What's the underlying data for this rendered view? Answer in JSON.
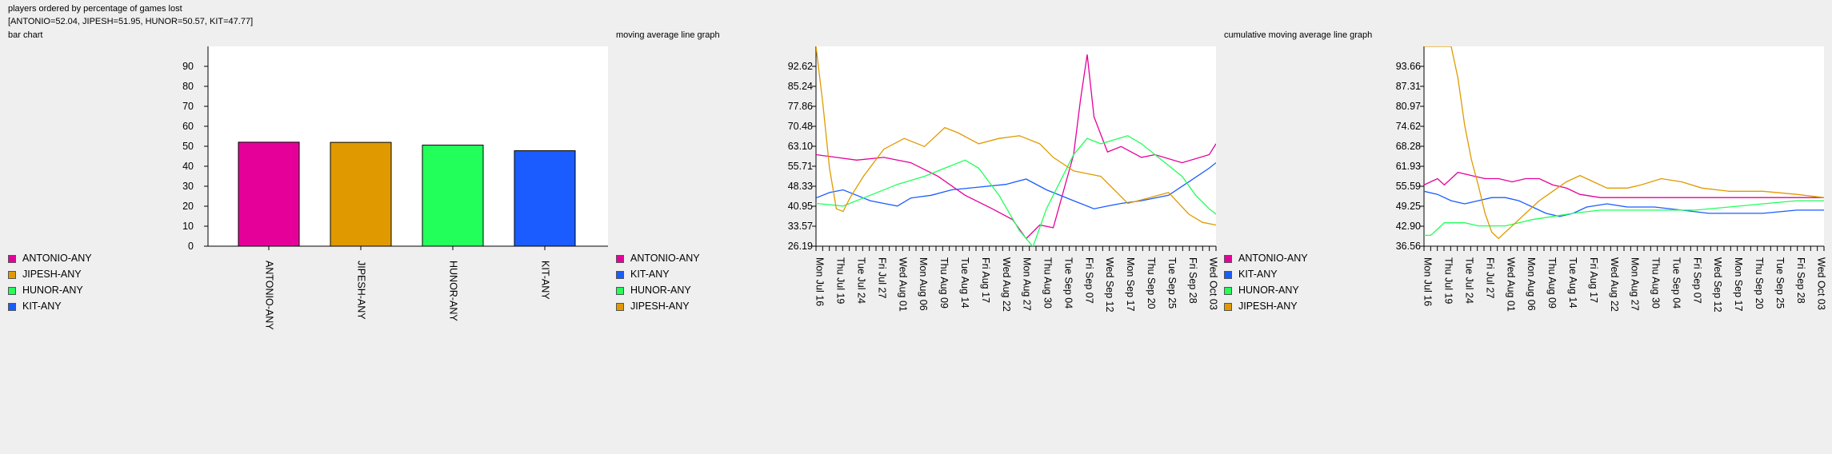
{
  "header": {
    "line1": "players ordered by percentage of games lost",
    "line2": "[ANTONIO=52.04, JIPESH=51.95, HUNOR=50.57, KIT=47.77]"
  },
  "colors": {
    "ANTONIO-ANY": "#e5009a",
    "JIPESH-ANY": "#e09a00",
    "HUNOR-ANY": "#22ff5a",
    "KIT-ANY": "#1a5cff"
  },
  "chart_data": [
    {
      "type": "bar",
      "title": "bar chart",
      "categories": [
        "ANTONIO-ANY",
        "JIPESH-ANY",
        "HUNOR-ANY",
        "KIT-ANY"
      ],
      "values": [
        52.04,
        51.95,
        50.57,
        47.77
      ],
      "ylim": [
        0,
        100
      ],
      "yticks": [
        "0",
        "10",
        "20",
        "30",
        "40",
        "50",
        "60",
        "70",
        "80",
        "90"
      ],
      "legend": [
        "ANTONIO-ANY",
        "JIPESH-ANY",
        "HUNOR-ANY",
        "KIT-ANY"
      ]
    },
    {
      "type": "line",
      "title": "moving average line graph",
      "ylim": [
        26.19,
        100
      ],
      "yticks": [
        "26.19",
        "33.57",
        "40.95",
        "48.33",
        "55.71",
        "63.10",
        "70.48",
        "77.86",
        "85.24",
        "92.62"
      ],
      "xticks": [
        "Mon Jul 16",
        "Thu Jul 19",
        "Tue Jul 24",
        "Fri Jul 27",
        "Wed Aug 01",
        "Mon Aug 06",
        "Thu Aug 09",
        "Tue Aug 14",
        "Fri Aug 17",
        "Wed Aug 22",
        "Mon Aug 27",
        "Thu Aug 30",
        "Tue Sep 04",
        "Fri Sep 07",
        "Wed Sep 12",
        "Mon Sep 17",
        "Thu Sep 20",
        "Tue Sep 25",
        "Fri Sep 28",
        "Wed Oct 03"
      ],
      "n_points": 60,
      "legend": [
        "ANTONIO-ANY",
        "KIT-ANY",
        "HUNOR-ANY",
        "JIPESH-ANY"
      ],
      "series": [
        {
          "name": "ANTONIO-ANY",
          "x_index": [
            0,
            3,
            6,
            10,
            14,
            18,
            22,
            26,
            29,
            31,
            33,
            35,
            38,
            39,
            40,
            41,
            43,
            45,
            48,
            50,
            54,
            58,
            59
          ],
          "values": [
            60,
            59,
            58,
            59,
            57,
            52,
            45,
            40,
            36,
            29,
            34,
            33,
            60,
            80,
            97,
            74,
            61,
            63,
            59,
            60,
            57,
            60,
            64
          ]
        },
        {
          "name": "KIT-ANY",
          "x_index": [
            0,
            2,
            4,
            6,
            8,
            10,
            12,
            14,
            17,
            20,
            24,
            28,
            31,
            34,
            38,
            41,
            43,
            45,
            48,
            52,
            55,
            58,
            59
          ],
          "values": [
            44,
            46,
            47,
            45,
            43,
            42,
            41,
            44,
            45,
            47,
            48,
            49,
            51,
            47,
            43,
            40,
            41,
            42,
            43,
            45,
            50,
            55,
            57
          ]
        },
        {
          "name": "HUNOR-ANY",
          "x_index": [
            0,
            4,
            8,
            12,
            16,
            19,
            22,
            24,
            27,
            30,
            32,
            34,
            38,
            40,
            42,
            46,
            48,
            51,
            54,
            56,
            58,
            59
          ],
          "values": [
            42,
            41,
            45,
            49,
            52,
            55,
            58,
            55,
            45,
            32,
            26,
            40,
            60,
            66,
            64,
            67,
            64,
            58,
            52,
            45,
            40,
            38
          ]
        },
        {
          "name": "JIPESH-ANY",
          "x_index": [
            0,
            1,
            2,
            3,
            4,
            5,
            7,
            10,
            13,
            16,
            19,
            21,
            24,
            27,
            30,
            33,
            35,
            38,
            40,
            42,
            44,
            46,
            49,
            52,
            55,
            57,
            59
          ],
          "values": [
            100,
            79,
            55,
            40,
            39,
            44,
            52,
            62,
            66,
            63,
            70,
            68,
            64,
            66,
            67,
            64,
            59,
            54,
            53,
            52,
            47,
            42,
            44,
            46,
            38,
            35,
            34
          ]
        }
      ]
    },
    {
      "type": "line",
      "title": "cumulative moving average line graph",
      "ylim": [
        36.56,
        100
      ],
      "yticks": [
        "36.56",
        "42.90",
        "49.25",
        "55.59",
        "61.93",
        "68.28",
        "74.62",
        "80.97",
        "87.31",
        "93.66"
      ],
      "xticks": [
        "Mon Jul 16",
        "Thu Jul 19",
        "Tue Jul 24",
        "Fri Jul 27",
        "Wed Aug 01",
        "Mon Aug 06",
        "Thu Aug 09",
        "Tue Aug 14",
        "Fri Aug 17",
        "Wed Aug 22",
        "Mon Aug 27",
        "Thu Aug 30",
        "Tue Sep 04",
        "Fri Sep 07",
        "Wed Sep 12",
        "Mon Sep 17",
        "Thu Sep 20",
        "Tue Sep 25",
        "Fri Sep 28",
        "Wed Oct 03"
      ],
      "n_points": 60,
      "legend": [
        "ANTONIO-ANY",
        "KIT-ANY",
        "HUNOR-ANY",
        "JIPESH-ANY"
      ],
      "series": [
        {
          "name": "ANTONIO-ANY",
          "x_index": [
            0,
            2,
            3,
            5,
            7,
            9,
            11,
            13,
            15,
            17,
            19,
            21,
            23,
            26,
            30,
            35,
            40,
            45,
            50,
            55,
            59
          ],
          "values": [
            56,
            58,
            56,
            60,
            59,
            58,
            58,
            57,
            58,
            58,
            56,
            55,
            53,
            52,
            52,
            52,
            52,
            52,
            52,
            52,
            52
          ]
        },
        {
          "name": "KIT-ANY",
          "x_index": [
            0,
            2,
            4,
            6,
            8,
            10,
            12,
            14,
            16,
            18,
            20,
            22,
            24,
            27,
            30,
            34,
            38,
            42,
            46,
            50,
            55,
            59
          ],
          "values": [
            54,
            53,
            51,
            50,
            51,
            52,
            52,
            51,
            49,
            47,
            46,
            47,
            49,
            50,
            49,
            49,
            48,
            47,
            47,
            47,
            48,
            48
          ]
        },
        {
          "name": "HUNOR-ANY",
          "x_index": [
            0,
            1,
            2,
            3,
            4,
            6,
            8,
            10,
            12,
            14,
            16,
            19,
            22,
            26,
            30,
            35,
            40,
            45,
            50,
            55,
            59
          ],
          "values": [
            40,
            40,
            42,
            44,
            44,
            44,
            43,
            43,
            43,
            44,
            45,
            46,
            47,
            48,
            48,
            48,
            48,
            49,
            50,
            51,
            51
          ]
        },
        {
          "name": "JIPESH-ANY",
          "x_index": [
            0,
            4,
            5,
            6,
            7,
            8,
            9,
            10,
            11,
            13,
            15,
            17,
            19,
            21,
            23,
            25,
            27,
            30,
            32,
            35,
            38,
            41,
            45,
            50,
            55,
            59
          ],
          "values": [
            100,
            100,
            90,
            75,
            64,
            56,
            47,
            41,
            39,
            43,
            47,
            51,
            54,
            57,
            59,
            57,
            55,
            55,
            56,
            58,
            57,
            55,
            54,
            54,
            53,
            52
          ]
        }
      ]
    }
  ]
}
